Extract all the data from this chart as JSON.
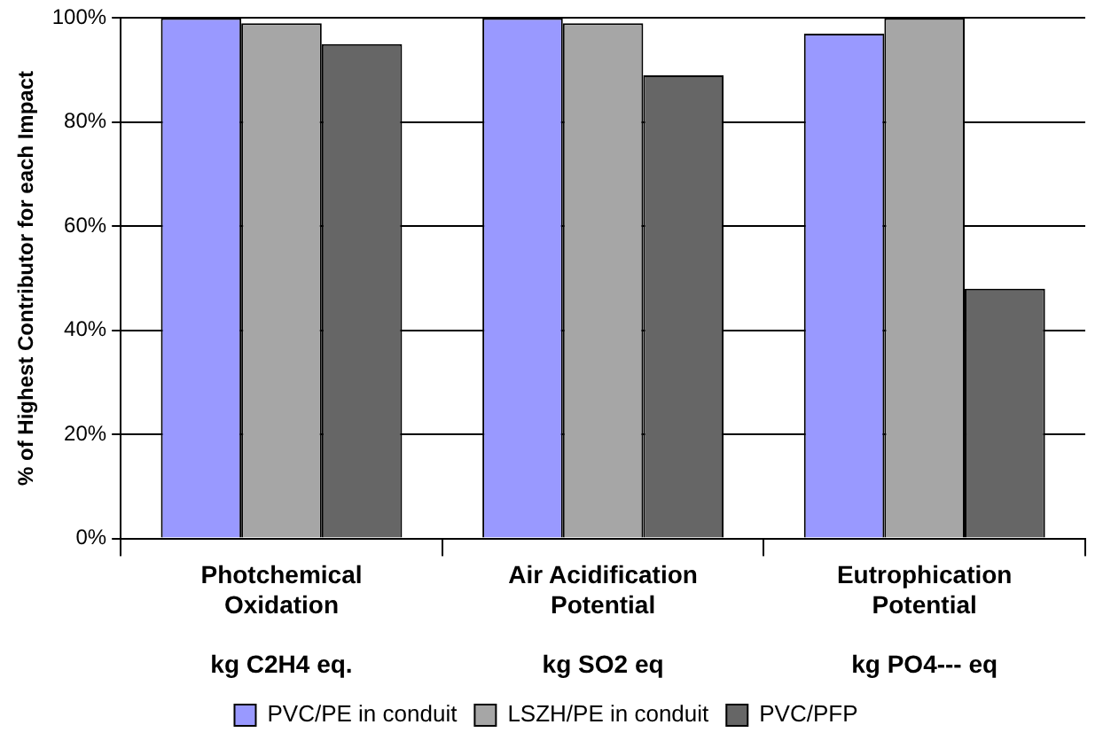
{
  "chart_data": {
    "type": "bar",
    "ylabel": "% of Highest Contributor for each Impact",
    "categories": [
      "Photchemical\nOxidation\n\nkg C2H4 eq.",
      "Air Acidification\nPotential\n\nkg SO2 eq",
      "Eutrophication\nPotential\n\nkg PO4--- eq"
    ],
    "series": [
      {
        "name": "PVC/PE in conduit",
        "color": "#9999ff",
        "values": [
          100,
          100,
          97
        ]
      },
      {
        "name": "LSZH/PE in conduit",
        "color": "#a6a6a6",
        "values": [
          99,
          99,
          100
        ]
      },
      {
        "name": "PVC/PFP",
        "color": "#666666",
        "values": [
          95,
          89,
          48
        ]
      }
    ],
    "ylim": [
      0,
      100
    ],
    "yticks": [
      {
        "value": 0,
        "label": "0%"
      },
      {
        "value": 20,
        "label": "20%"
      },
      {
        "value": 40,
        "label": "40%"
      },
      {
        "value": 60,
        "label": "60%"
      },
      {
        "value": 80,
        "label": "80%"
      },
      {
        "value": 100,
        "label": "100%"
      }
    ],
    "grid": "y",
    "legend": "bottom"
  }
}
